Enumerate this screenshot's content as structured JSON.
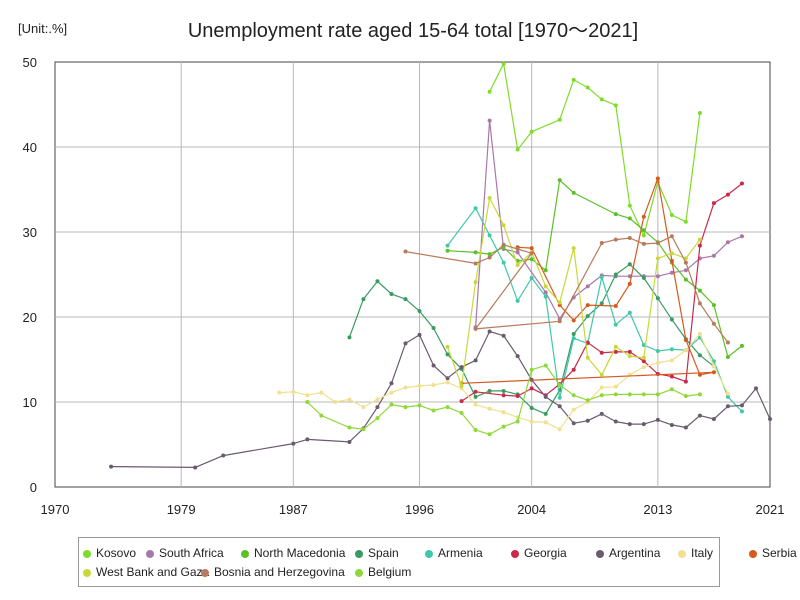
{
  "chart_data": {
    "type": "line",
    "title": "Unemployment rate aged 15-64 total [1970～2021]",
    "unit_label": "[Unit:.%]",
    "xlim": [
      1970,
      2021
    ],
    "ylim": [
      0,
      50
    ],
    "x_ticks": [
      1970,
      1979,
      1987,
      1996,
      2004,
      2013,
      2021
    ],
    "y_ticks": [
      0,
      10,
      20,
      30,
      40,
      50
    ],
    "grid": true,
    "legend_position": "bottom",
    "series": [
      {
        "name": "Kosovo",
        "color": "#7fdc2a",
        "points": [
          [
            2001,
            46.5
          ],
          [
            2002,
            49.8
          ],
          [
            2003,
            39.7
          ],
          [
            2004,
            41.8
          ],
          [
            2006,
            43.2
          ],
          [
            2007,
            47.9
          ],
          [
            2008,
            47.0
          ],
          [
            2009,
            45.6
          ],
          [
            2010,
            44.9
          ],
          [
            2011,
            33.1
          ],
          [
            2012,
            29.6
          ],
          [
            2013,
            35.9
          ],
          [
            2014,
            32.0
          ],
          [
            2015,
            31.2
          ],
          [
            2016,
            44.0
          ]
        ]
      },
      {
        "name": "South Africa",
        "color": "#a878a8",
        "points": [
          [
            2000,
            18.8
          ],
          [
            2001,
            43.1
          ],
          [
            2002,
            28.0
          ],
          [
            2003,
            27.6
          ],
          [
            2005,
            22.9
          ],
          [
            2006,
            19.8
          ],
          [
            2007,
            22.3
          ],
          [
            2008,
            23.6
          ],
          [
            2009,
            24.9
          ],
          [
            2010,
            24.8
          ],
          [
            2011,
            24.8
          ],
          [
            2012,
            24.8
          ],
          [
            2013,
            24.8
          ],
          [
            2014,
            25.2
          ],
          [
            2015,
            25.5
          ],
          [
            2016,
            26.9
          ],
          [
            2017,
            27.2
          ],
          [
            2018,
            28.8
          ],
          [
            2019,
            29.5
          ]
        ]
      },
      {
        "name": "North Macedonia",
        "color": "#5cc028",
        "points": [
          [
            1998,
            27.8
          ],
          [
            2000,
            27.6
          ],
          [
            2001,
            27.4
          ],
          [
            2002,
            28.2
          ],
          [
            2003,
            26.6
          ],
          [
            2004,
            26.8
          ],
          [
            2005,
            25.5
          ],
          [
            2006,
            36.1
          ],
          [
            2007,
            34.6
          ],
          [
            2010,
            32.1
          ],
          [
            2011,
            31.6
          ],
          [
            2012,
            30.2
          ],
          [
            2013,
            28.8
          ],
          [
            2014,
            26.4
          ],
          [
            2015,
            24.4
          ],
          [
            2016,
            23.1
          ],
          [
            2017,
            21.4
          ],
          [
            2018,
            15.3
          ],
          [
            2019,
            16.6
          ]
        ]
      },
      {
        "name": "Spain",
        "color": "#3a9a62",
        "points": [
          [
            1991,
            17.6
          ],
          [
            1992,
            22.1
          ],
          [
            1993,
            24.2
          ],
          [
            1994,
            22.7
          ],
          [
            1995,
            22.1
          ],
          [
            1996,
            20.7
          ],
          [
            1997,
            18.7
          ],
          [
            1998,
            15.6
          ],
          [
            1999,
            13.9
          ],
          [
            2000,
            10.6
          ],
          [
            2001,
            11.3
          ],
          [
            2002,
            11.3
          ],
          [
            2003,
            10.9
          ],
          [
            2004,
            9.3
          ],
          [
            2005,
            8.6
          ],
          [
            2006,
            11.4
          ],
          [
            2007,
            18.0
          ],
          [
            2008,
            20.1
          ],
          [
            2009,
            21.6
          ],
          [
            2010,
            25.0
          ],
          [
            2011,
            26.2
          ],
          [
            2012,
            24.6
          ],
          [
            2013,
            22.2
          ],
          [
            2014,
            19.7
          ],
          [
            2015,
            17.4
          ],
          [
            2016,
            15.5
          ],
          [
            2017,
            14.2
          ]
        ]
      },
      {
        "name": "Armenia",
        "color": "#40c8a8",
        "points": [
          [
            1998,
            28.4
          ],
          [
            2000,
            32.8
          ],
          [
            2001,
            29.6
          ],
          [
            2002,
            26.4
          ],
          [
            2003,
            21.9
          ],
          [
            2004,
            24.6
          ],
          [
            2005,
            22.4
          ],
          [
            2006,
            10.5
          ],
          [
            2007,
            17.5
          ],
          [
            2008,
            16.9
          ],
          [
            2009,
            24.7
          ],
          [
            2010,
            19.1
          ],
          [
            2011,
            20.5
          ],
          [
            2012,
            16.7
          ],
          [
            2013,
            16.0
          ],
          [
            2014,
            16.2
          ],
          [
            2015,
            16.1
          ],
          [
            2016,
            17.6
          ],
          [
            2017,
            14.8
          ],
          [
            2018,
            10.6
          ],
          [
            2019,
            8.9
          ]
        ]
      },
      {
        "name": "Georgia",
        "color": "#c82a48",
        "points": [
          [
            1999,
            10.1
          ],
          [
            2000,
            11.2
          ],
          [
            2002,
            10.8
          ],
          [
            2003,
            10.7
          ],
          [
            2004,
            11.6
          ],
          [
            2005,
            10.8
          ],
          [
            2006,
            12.1
          ],
          [
            2007,
            13.8
          ],
          [
            2008,
            17.0
          ],
          [
            2009,
            15.8
          ],
          [
            2010,
            15.9
          ],
          [
            2011,
            15.9
          ],
          [
            2012,
            14.8
          ],
          [
            2013,
            13.3
          ],
          [
            2014,
            13.0
          ],
          [
            2015,
            12.4
          ],
          [
            2016,
            28.4
          ],
          [
            2017,
            33.4
          ],
          [
            2018,
            34.4
          ],
          [
            2019,
            35.7
          ]
        ]
      },
      {
        "name": "Argentina",
        "color": "#6a5a6e",
        "points": [
          [
            1974,
            2.4
          ],
          [
            1980,
            2.3
          ],
          [
            1982,
            3.7
          ],
          [
            1987,
            5.1
          ],
          [
            1988,
            5.6
          ],
          [
            1991,
            5.3
          ],
          [
            1992,
            6.9
          ],
          [
            1993,
            9.4
          ],
          [
            1994,
            12.2
          ],
          [
            1995,
            16.9
          ],
          [
            1996,
            17.9
          ],
          [
            1997,
            14.3
          ],
          [
            1998,
            12.8
          ],
          [
            1999,
            14.1
          ],
          [
            2000,
            14.9
          ],
          [
            2001,
            18.3
          ],
          [
            2002,
            17.8
          ],
          [
            2003,
            15.4
          ],
          [
            2004,
            12.6
          ],
          [
            2005,
            10.6
          ],
          [
            2006,
            9.5
          ],
          [
            2007,
            7.5
          ],
          [
            2008,
            7.8
          ],
          [
            2009,
            8.6
          ],
          [
            2010,
            7.7
          ],
          [
            2011,
            7.4
          ],
          [
            2012,
            7.4
          ],
          [
            2013,
            7.9
          ],
          [
            2014,
            7.3
          ],
          [
            2015,
            7.0
          ],
          [
            2016,
            8.4
          ],
          [
            2017,
            8.0
          ],
          [
            2018,
            9.5
          ],
          [
            2019,
            9.6
          ],
          [
            2020,
            11.6
          ],
          [
            2021,
            8.0
          ]
        ]
      },
      {
        "name": "Italy",
        "color": "#f0e090",
        "points": [
          [
            1986,
            11.1
          ],
          [
            1987,
            11.2
          ],
          [
            1988,
            10.8
          ],
          [
            1989,
            11.1
          ],
          [
            1990,
            10.0
          ],
          [
            1991,
            10.3
          ],
          [
            1992,
            9.4
          ],
          [
            1993,
            10.3
          ],
          [
            1994,
            11.1
          ],
          [
            1995,
            11.7
          ],
          [
            1996,
            11.9
          ],
          [
            1997,
            12.0
          ],
          [
            1998,
            12.3
          ],
          [
            1999,
            11.6
          ],
          [
            2000,
            9.7
          ],
          [
            2001,
            9.2
          ],
          [
            2002,
            8.8
          ],
          [
            2003,
            8.2
          ],
          [
            2004,
            7.7
          ],
          [
            2005,
            7.6
          ],
          [
            2006,
            6.8
          ],
          [
            2007,
            9.1
          ],
          [
            2008,
            10.0
          ],
          [
            2009,
            11.7
          ],
          [
            2010,
            11.8
          ],
          [
            2011,
            13.2
          ],
          [
            2012,
            14.1
          ],
          [
            2013,
            14.6
          ],
          [
            2014,
            14.9
          ],
          [
            2015,
            16.1
          ],
          [
            2016,
            18.0
          ],
          [
            2017,
            14.2
          ],
          [
            2018,
            11.0
          ]
        ]
      },
      {
        "name": "Serbia",
        "color": "#d45a1e",
        "points": [
          [
            2003,
            28.2
          ],
          [
            2004,
            28.1
          ],
          [
            2006,
            21.4
          ],
          [
            2007,
            19.6
          ],
          [
            2008,
            21.4
          ],
          [
            2010,
            21.3
          ],
          [
            2011,
            23.9
          ],
          [
            2012,
            31.8
          ],
          [
            2013,
            36.3
          ],
          [
            2014,
            26.6
          ],
          [
            2015,
            17.3
          ],
          [
            2016,
            13.2
          ],
          [
            2017,
            13.5
          ],
          [
            1999,
            12.2
          ]
        ]
      },
      {
        "name": "West Bank and Gaza",
        "color": "#c8d83a",
        "points": [
          [
            1998,
            16.5
          ],
          [
            1999,
            11.9
          ],
          [
            2000,
            24.1
          ],
          [
            2001,
            34.0
          ],
          [
            2002,
            30.8
          ],
          [
            2003,
            26.1
          ],
          [
            2004,
            27.6
          ],
          [
            2005,
            23.6
          ],
          [
            2006,
            21.7
          ],
          [
            2007,
            28.1
          ],
          [
            2008,
            15.2
          ],
          [
            2009,
            13.2
          ],
          [
            2010,
            16.5
          ],
          [
            2011,
            15.4
          ],
          [
            2012,
            15.2
          ],
          [
            2013,
            26.9
          ],
          [
            2014,
            27.5
          ],
          [
            2015,
            26.9
          ],
          [
            2016,
            29.1
          ]
        ]
      },
      {
        "name": "Bosnia and Herzegovina",
        "color": "#b87a5e",
        "points": [
          [
            1995,
            27.7
          ],
          [
            2000,
            26.3
          ],
          [
            2001,
            27.0
          ],
          [
            2002,
            28.5
          ],
          [
            2003,
            28.0
          ],
          [
            2004,
            27.5
          ],
          [
            2000,
            18.6
          ],
          [
            2006,
            19.5
          ],
          [
            2009,
            28.7
          ],
          [
            2010,
            29.1
          ],
          [
            2011,
            29.3
          ],
          [
            2012,
            28.6
          ],
          [
            2013,
            28.7
          ],
          [
            2014,
            29.5
          ],
          [
            2015,
            26.4
          ],
          [
            2016,
            21.6
          ],
          [
            2017,
            19.2
          ],
          [
            2018,
            17.0
          ]
        ]
      },
      {
        "name": "Belgium",
        "color": "#8ed83a",
        "points": [
          [
            1988,
            10.0
          ],
          [
            1989,
            8.4
          ],
          [
            1991,
            7.0
          ],
          [
            1992,
            6.8
          ],
          [
            1993,
            8.1
          ],
          [
            1994,
            9.7
          ],
          [
            1995,
            9.4
          ],
          [
            1996,
            9.6
          ],
          [
            1997,
            9.0
          ],
          [
            1998,
            9.4
          ],
          [
            1999,
            8.7
          ],
          [
            2000,
            6.7
          ],
          [
            2001,
            6.2
          ],
          [
            2002,
            7.1
          ],
          [
            2003,
            7.7
          ],
          [
            2004,
            13.8
          ],
          [
            2005,
            14.3
          ],
          [
            2006,
            12.0
          ],
          [
            2007,
            10.8
          ],
          [
            2008,
            10.2
          ],
          [
            2009,
            10.8
          ],
          [
            2010,
            10.9
          ],
          [
            2011,
            10.9
          ],
          [
            2012,
            10.9
          ],
          [
            2013,
            10.9
          ],
          [
            2014,
            11.5
          ],
          [
            2015,
            10.7
          ],
          [
            2016,
            10.9
          ]
        ]
      }
    ]
  }
}
